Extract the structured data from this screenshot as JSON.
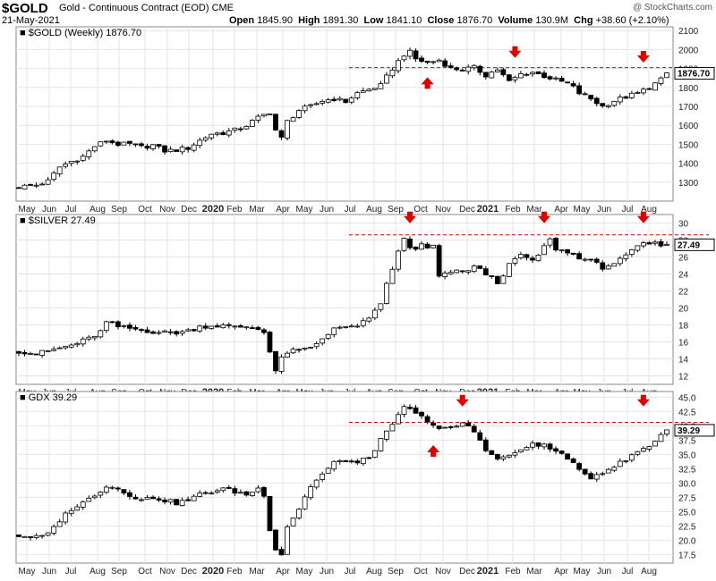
{
  "header": {
    "symbol": "$GOLD",
    "description": "Gold - Continuous Contract (EOD)",
    "exchange": "CME",
    "date": "21-May-2021",
    "open_label": "Open",
    "open": "1845.90",
    "high_label": "High",
    "high": "1891.30",
    "low_label": "Low",
    "low": "1841.10",
    "close_label": "Close",
    "close": "1876.70",
    "volume_label": "Volume",
    "volume": "130.9M",
    "chg_label": "Chg",
    "chg": "+38.60 (+2.10%)",
    "credit": "@ StockCharts.com"
  },
  "colors": {
    "annotation": "#e00000",
    "bear_candle": "#000000",
    "bull_candle": "#ffffff",
    "grid": "#e4e4e4"
  },
  "chart_data": [
    {
      "type": "candlestick",
      "title": "$GOLD (Weekly) 1876.70",
      "series_name": "$GOLD",
      "period": "Weekly",
      "last": 1876.7,
      "last_label": "1876.70",
      "ylim": [
        1200,
        2120
      ],
      "y_ticks": [
        1300,
        1400,
        1500,
        1600,
        1700,
        1800,
        1900,
        2000,
        2100
      ],
      "resistance_level": 1905,
      "anchors": [
        [
          0,
          1275
        ],
        [
          3,
          1285
        ],
        [
          5,
          1305
        ],
        [
          7,
          1380
        ],
        [
          9,
          1410
        ],
        [
          11,
          1435
        ],
        [
          13,
          1490
        ],
        [
          15,
          1520
        ],
        [
          17,
          1500
        ],
        [
          19,
          1500
        ],
        [
          21,
          1485
        ],
        [
          23,
          1495
        ],
        [
          25,
          1465
        ],
        [
          27,
          1470
        ],
        [
          29,
          1480
        ],
        [
          31,
          1520
        ],
        [
          33,
          1555
        ],
        [
          35,
          1560
        ],
        [
          37,
          1575
        ],
        [
          39,
          1600
        ],
        [
          41,
          1640
        ],
        [
          43,
          1670
        ],
        [
          44,
          1575
        ],
        [
          45,
          1530
        ],
        [
          46,
          1620
        ],
        [
          48,
          1680
        ],
        [
          50,
          1700
        ],
        [
          52,
          1730
        ],
        [
          54,
          1740
        ],
        [
          56,
          1725
        ],
        [
          58,
          1770
        ],
        [
          60,
          1790
        ],
        [
          62,
          1810
        ],
        [
          64,
          1900
        ],
        [
          66,
          1975
        ],
        [
          67,
          1985
        ],
        [
          68,
          1950
        ],
        [
          70,
          1930
        ],
        [
          72,
          1945
        ],
        [
          74,
          1900
        ],
        [
          76,
          1895
        ],
        [
          78,
          1905
        ],
        [
          80,
          1865
        ],
        [
          82,
          1895
        ],
        [
          84,
          1830
        ],
        [
          86,
          1870
        ],
        [
          88,
          1880
        ],
        [
          90,
          1860
        ],
        [
          92,
          1840
        ],
        [
          94,
          1820
        ],
        [
          95,
          1800
        ],
        [
          96,
          1770
        ],
        [
          98,
          1740
        ],
        [
          100,
          1700
        ],
        [
          102,
          1730
        ],
        [
          104,
          1750
        ],
        [
          106,
          1770
        ],
        [
          108,
          1800
        ],
        [
          110,
          1840
        ],
        [
          111,
          1876.7
        ]
      ],
      "up_arrows": [
        {
          "week": 70,
          "value": 1835
        }
      ],
      "down_arrows": [
        {
          "week": 85,
          "value": 1975
        },
        {
          "week": 107,
          "value": 1950
        }
      ],
      "x_axis_labels": [
        "May",
        "Jun",
        "Jul",
        "Aug",
        "Sep",
        "Oct",
        "Nov",
        "Dec",
        "2020",
        "Feb",
        "Mar",
        "Apr",
        "May",
        "Jun",
        "Jul",
        "Aug",
        "Sep",
        "Oct",
        "Nov",
        "Dec",
        "2021",
        "Feb",
        "Mar",
        "Apr",
        "May",
        "Jun",
        "Jul",
        "Aug"
      ]
    },
    {
      "type": "candlestick",
      "title": "$SILVER 27.49",
      "series_name": "$SILVER",
      "last": 27.49,
      "last_label": "27.49",
      "ylim": [
        11,
        31
      ],
      "y_ticks": [
        12,
        14,
        16,
        18,
        20,
        22,
        24,
        26,
        28,
        30
      ],
      "resistance_level": 28.6,
      "anchors": [
        [
          0,
          14.9
        ],
        [
          3,
          14.6
        ],
        [
          6,
          15.1
        ],
        [
          9,
          15.6
        ],
        [
          12,
          16.4
        ],
        [
          14,
          17.2
        ],
        [
          15,
          18.3
        ],
        [
          17,
          17.8
        ],
        [
          19,
          17.6
        ],
        [
          21,
          17.4
        ],
        [
          23,
          17.2
        ],
        [
          25,
          17.1
        ],
        [
          27,
          17.1
        ],
        [
          29,
          17.3
        ],
        [
          31,
          17.8
        ],
        [
          33,
          17.9
        ],
        [
          35,
          17.9
        ],
        [
          37,
          17.7
        ],
        [
          39,
          17.8
        ],
        [
          41,
          17.5
        ],
        [
          42,
          17.3
        ],
        [
          43,
          14.8
        ],
        [
          44,
          12.6
        ],
        [
          45,
          14.0
        ],
        [
          46,
          14.8
        ],
        [
          48,
          15.0
        ],
        [
          50,
          15.3
        ],
        [
          52,
          16.4
        ],
        [
          54,
          17.7
        ],
        [
          56,
          17.6
        ],
        [
          58,
          18.0
        ],
        [
          60,
          18.6
        ],
        [
          62,
          20.5
        ],
        [
          63,
          23.0
        ],
        [
          64,
          24.4
        ],
        [
          65,
          26.6
        ],
        [
          66,
          28.2
        ],
        [
          67,
          27.2
        ],
        [
          68,
          26.8
        ],
        [
          69,
          27.4
        ],
        [
          70,
          27.0
        ],
        [
          71,
          27.3
        ],
        [
          72,
          23.6
        ],
        [
          73,
          23.9
        ],
        [
          74,
          24.3
        ],
        [
          76,
          24.2
        ],
        [
          78,
          24.9
        ],
        [
          80,
          24.0
        ],
        [
          82,
          23.0
        ],
        [
          84,
          25.0
        ],
        [
          86,
          26.3
        ],
        [
          88,
          25.4
        ],
        [
          90,
          27.2
        ],
        [
          91,
          28.0
        ],
        [
          92,
          27.0
        ],
        [
          94,
          26.5
        ],
        [
          96,
          26.0
        ],
        [
          98,
          25.5
        ],
        [
          100,
          24.8
        ],
        [
          102,
          25.3
        ],
        [
          104,
          26.0
        ],
        [
          106,
          27.3
        ],
        [
          108,
          27.6
        ],
        [
          111,
          27.49
        ]
      ],
      "up_arrows": [],
      "down_arrows": [
        {
          "week": 67,
          "value": 30.4
        },
        {
          "week": 90,
          "value": 30.4
        },
        {
          "week": 107,
          "value": 30.4
        }
      ],
      "x_axis_labels": [
        "May",
        "Jun",
        "Jul",
        "Aug",
        "Sep",
        "Oct",
        "Nov",
        "Dec",
        "2020",
        "Feb",
        "Mar",
        "Apr",
        "May",
        "Jun",
        "Jul",
        "Aug",
        "Sep",
        "Oct",
        "Nov",
        "Dec",
        "2021",
        "Feb",
        "Mar",
        "Apr",
        "May",
        "Jun",
        "Jul",
        "Aug"
      ]
    },
    {
      "type": "candlestick",
      "title": "GDX 39.29",
      "series_name": "GDX",
      "last": 39.29,
      "last_label": "39.29",
      "ylim": [
        16,
        46
      ],
      "y_ticks": [
        17.5,
        20.0,
        22.5,
        25.0,
        27.5,
        30.0,
        32.5,
        35.0,
        37.5,
        40.0,
        42.5,
        45.0
      ],
      "resistance_level": 40.6,
      "anchors": [
        [
          0,
          20.8
        ],
        [
          3,
          20.5
        ],
        [
          5,
          21.0
        ],
        [
          7,
          23.5
        ],
        [
          9,
          25.5
        ],
        [
          11,
          26.5
        ],
        [
          13,
          28.0
        ],
        [
          15,
          29.5
        ],
        [
          17,
          29.0
        ],
        [
          19,
          28.0
        ],
        [
          21,
          27.0
        ],
        [
          23,
          27.5
        ],
        [
          25,
          27.0
        ],
        [
          27,
          26.5
        ],
        [
          29,
          27.0
        ],
        [
          31,
          28.0
        ],
        [
          33,
          28.5
        ],
        [
          35,
          29.0
        ],
        [
          37,
          28.5
        ],
        [
          39,
          28.0
        ],
        [
          41,
          29.0
        ],
        [
          42,
          28.0
        ],
        [
          43,
          22.0
        ],
        [
          44,
          18.5
        ],
        [
          45,
          17.5
        ],
        [
          46,
          22.5
        ],
        [
          48,
          25.5
        ],
        [
          50,
          29.5
        ],
        [
          52,
          31.5
        ],
        [
          54,
          33.5
        ],
        [
          56,
          34.0
        ],
        [
          58,
          33.5
        ],
        [
          60,
          34.5
        ],
        [
          62,
          37.5
        ],
        [
          64,
          40.0
        ],
        [
          66,
          43.5
        ],
        [
          68,
          42.0
        ],
        [
          70,
          41.0
        ],
        [
          72,
          39.5
        ],
        [
          74,
          39.5
        ],
        [
          76,
          40.5
        ],
        [
          78,
          39.0
        ],
        [
          80,
          36.0
        ],
        [
          82,
          34.0
        ],
        [
          84,
          35.0
        ],
        [
          86,
          35.5
        ],
        [
          88,
          37.0
        ],
        [
          90,
          36.5
        ],
        [
          92,
          35.5
        ],
        [
          94,
          34.5
        ],
        [
          96,
          32.0
        ],
        [
          98,
          31.0
        ],
        [
          100,
          32.0
        ],
        [
          102,
          33.0
        ],
        [
          104,
          34.0
        ],
        [
          106,
          35.5
        ],
        [
          108,
          36.5
        ],
        [
          110,
          38.5
        ],
        [
          111,
          39.29
        ]
      ],
      "up_arrows": [
        {
          "week": 71,
          "value": 36.0
        }
      ],
      "down_arrows": [
        {
          "week": 76,
          "value": 44.0
        },
        {
          "week": 107,
          "value": 44.0
        }
      ],
      "x_axis_labels": [
        "May",
        "Jun",
        "Jul",
        "Aug",
        "Sep",
        "Oct",
        "Nov",
        "Dec",
        "2020",
        "Feb",
        "Mar",
        "Apr",
        "May",
        "Jun",
        "Jul",
        "Aug",
        "Sep",
        "Oct",
        "Nov",
        "Dec",
        "2021",
        "Feb",
        "Mar",
        "Apr",
        "May",
        "Jun",
        "Jul",
        "Aug"
      ]
    }
  ]
}
